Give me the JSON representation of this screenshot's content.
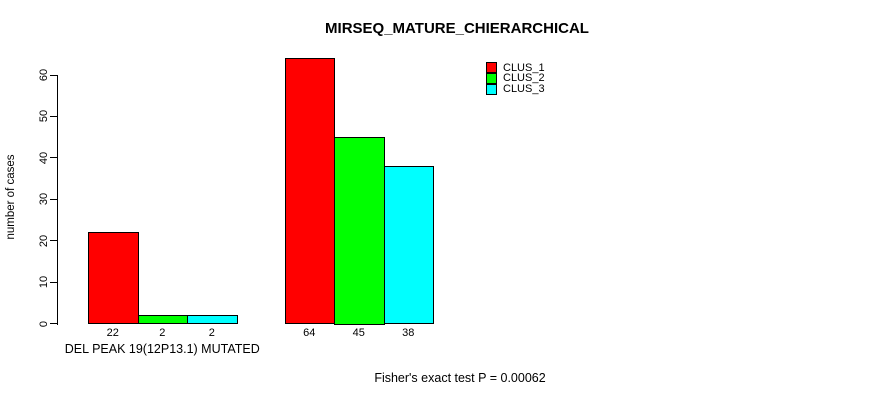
{
  "chart_data": {
    "type": "bar",
    "title": "MIRSEQ_MATURE_CHIERARCHICAL",
    "xlabel": "",
    "ylabel": "number of cases",
    "ylim": [
      0,
      60
    ],
    "yticks": [
      0,
      10,
      20,
      30,
      40,
      50,
      60
    ],
    "grid": false,
    "legend_position": "top-right-inside",
    "categories": [
      "DEL PEAK 19(12P13.1) MUTATED",
      ""
    ],
    "series": [
      {
        "name": "CLUS_1",
        "color": "#FF0000",
        "values": [
          22,
          64
        ]
      },
      {
        "name": "CLUS_2",
        "color": "#00FF00",
        "values": [
          2,
          45
        ]
      },
      {
        "name": "CLUS_3",
        "color": "#00FFFF",
        "values": [
          2,
          38
        ]
      }
    ],
    "bar_value_labels": true,
    "annotation": "Fisher's exact test P = 0.00062",
    "colors": {
      "axis": "#000000",
      "bar_border": "#000000",
      "background": "#FFFFFF"
    }
  }
}
